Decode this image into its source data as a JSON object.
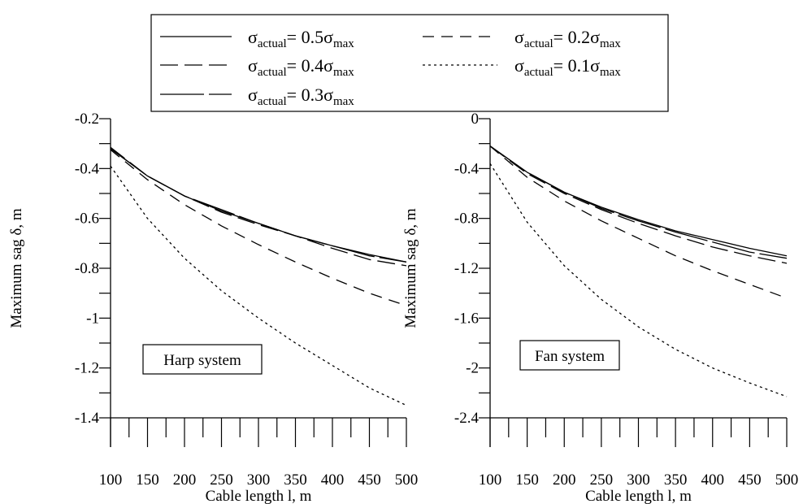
{
  "legend": {
    "entries": [
      {
        "series": "s05",
        "sym": "σ",
        "sub1": "actual",
        "mid": "= 0.5σ",
        "sub2": "max"
      },
      {
        "series": "s02",
        "sym": "σ",
        "sub1": "actual",
        "mid": "= 0.2σ",
        "sub2": "max"
      },
      {
        "series": "s04",
        "sym": "σ",
        "sub1": "actual",
        "mid": "= 0.4σ",
        "sub2": "max"
      },
      {
        "series": "s01",
        "sym": "σ",
        "sub1": "actual",
        "mid": "= 0.1σ",
        "sub2": "max"
      },
      {
        "series": "s03",
        "sym": "σ",
        "sub1": "actual",
        "mid": "= 0.3σ",
        "sub2": "max"
      }
    ]
  },
  "series_styles": {
    "s05": {
      "dash": "",
      "color": "#000000"
    },
    "s04": {
      "dash": "22 8",
      "color": "#000000"
    },
    "s03": {
      "dash": "54 6",
      "color": "#000000"
    },
    "s02": {
      "dash": "14 9",
      "color": "#000000"
    },
    "s01": {
      "dash": "3 4",
      "color": "#000000"
    }
  },
  "chart_data": [
    {
      "type": "line",
      "annotation": "Harp system",
      "xlabel": "Cable length l, m",
      "ylabel": "Maximum sag δ, m",
      "xlim": [
        100,
        500
      ],
      "ylim": [
        -1.4,
        -0.2
      ],
      "xticks": [
        100,
        150,
        200,
        250,
        300,
        350,
        400,
        450,
        500
      ],
      "xtick_labels": [
        "100",
        "150",
        "200",
        "250",
        "300",
        "350",
        "400",
        "450",
        "500"
      ],
      "yticks": [
        -0.2,
        -0.4,
        -0.6,
        -0.8,
        -1,
        -1.2,
        -1.4
      ],
      "ytick_labels": [
        "-0.2",
        "-0.4",
        "-0.6",
        "-0.8",
        "-1",
        "-1.2",
        "-1.4"
      ],
      "x": [
        100,
        150,
        200,
        250,
        300,
        350,
        400,
        450,
        500
      ],
      "series": [
        {
          "id": "s05",
          "values": [
            -0.32,
            -0.43,
            -0.51,
            -0.57,
            -0.62,
            -0.67,
            -0.71,
            -0.745,
            -0.775
          ]
        },
        {
          "id": "s04",
          "values": [
            -0.315,
            -0.43,
            -0.51,
            -0.575,
            -0.625,
            -0.67,
            -0.72,
            -0.765,
            -0.79
          ]
        },
        {
          "id": "s03",
          "values": [
            -0.32,
            -0.43,
            -0.51,
            -0.565,
            -0.62,
            -0.67,
            -0.71,
            -0.75,
            -0.775
          ]
        },
        {
          "id": "s02",
          "values": [
            -0.325,
            -0.445,
            -0.545,
            -0.63,
            -0.705,
            -0.775,
            -0.84,
            -0.9,
            -0.95
          ]
        },
        {
          "id": "s01",
          "values": [
            -0.39,
            -0.6,
            -0.76,
            -0.89,
            -1.0,
            -1.1,
            -1.19,
            -1.28,
            -1.35
          ]
        }
      ]
    },
    {
      "type": "line",
      "annotation": "Fan system",
      "xlabel": "Cable length l, m",
      "ylabel": "Maximum sag δ, m",
      "xlim": [
        100,
        500
      ],
      "ylim": [
        -2.4,
        0
      ],
      "xticks": [
        100,
        150,
        200,
        250,
        300,
        350,
        400,
        450,
        500
      ],
      "xtick_labels": [
        "100",
        "150",
        "200",
        "250",
        "300",
        "350",
        "400",
        "450",
        "500"
      ],
      "yticks": [
        0,
        -0.4,
        -0.8,
        -1.2,
        -1.6,
        -2,
        -2.4
      ],
      "ytick_labels": [
        "0",
        "-0.4",
        "-0.8",
        "-1.2",
        "-1.6",
        "-2",
        "-2.4"
      ],
      "x": [
        100,
        150,
        200,
        250,
        300,
        350,
        400,
        450,
        500
      ],
      "series": [
        {
          "id": "s05",
          "values": [
            -0.22,
            -0.43,
            -0.59,
            -0.71,
            -0.81,
            -0.9,
            -0.97,
            -1.04,
            -1.1
          ]
        },
        {
          "id": "s04",
          "values": [
            -0.22,
            -0.44,
            -0.6,
            -0.73,
            -0.84,
            -0.94,
            -1.03,
            -1.1,
            -1.16
          ]
        },
        {
          "id": "s03",
          "values": [
            -0.22,
            -0.43,
            -0.59,
            -0.72,
            -0.82,
            -0.91,
            -0.99,
            -1.07,
            -1.12
          ]
        },
        {
          "id": "s02",
          "values": [
            -0.22,
            -0.47,
            -0.66,
            -0.82,
            -0.96,
            -1.1,
            -1.22,
            -1.33,
            -1.44
          ]
        },
        {
          "id": "s01",
          "values": [
            -0.36,
            -0.83,
            -1.18,
            -1.45,
            -1.67,
            -1.85,
            -2.0,
            -2.12,
            -2.23
          ]
        }
      ]
    }
  ]
}
